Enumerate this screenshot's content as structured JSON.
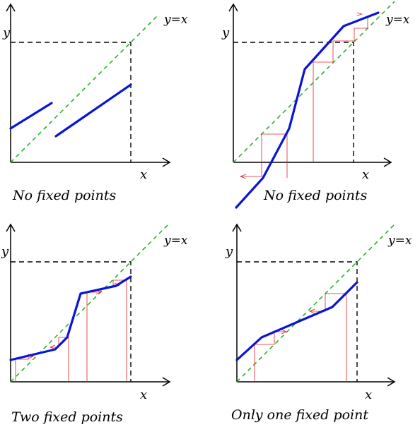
{
  "panels": [
    {
      "axis_x": "x",
      "axis_y": "y",
      "diagonal": "y=x",
      "caption": "No fixed points"
    },
    {
      "axis_x": "x",
      "axis_y": "y",
      "diagonal": "y=x",
      "caption": "No fixed points"
    },
    {
      "axis_x": "x",
      "axis_y": "y",
      "diagonal": "y=x",
      "caption": "Two fixed points"
    },
    {
      "axis_x": "x",
      "axis_y": "y",
      "diagonal": "y=x",
      "caption": "Only one fixed point"
    }
  ],
  "colors": {
    "function": "#0a14d6",
    "diagonal": "#22aa22",
    "cobweb": "#e32222",
    "axes": "#000000"
  }
}
